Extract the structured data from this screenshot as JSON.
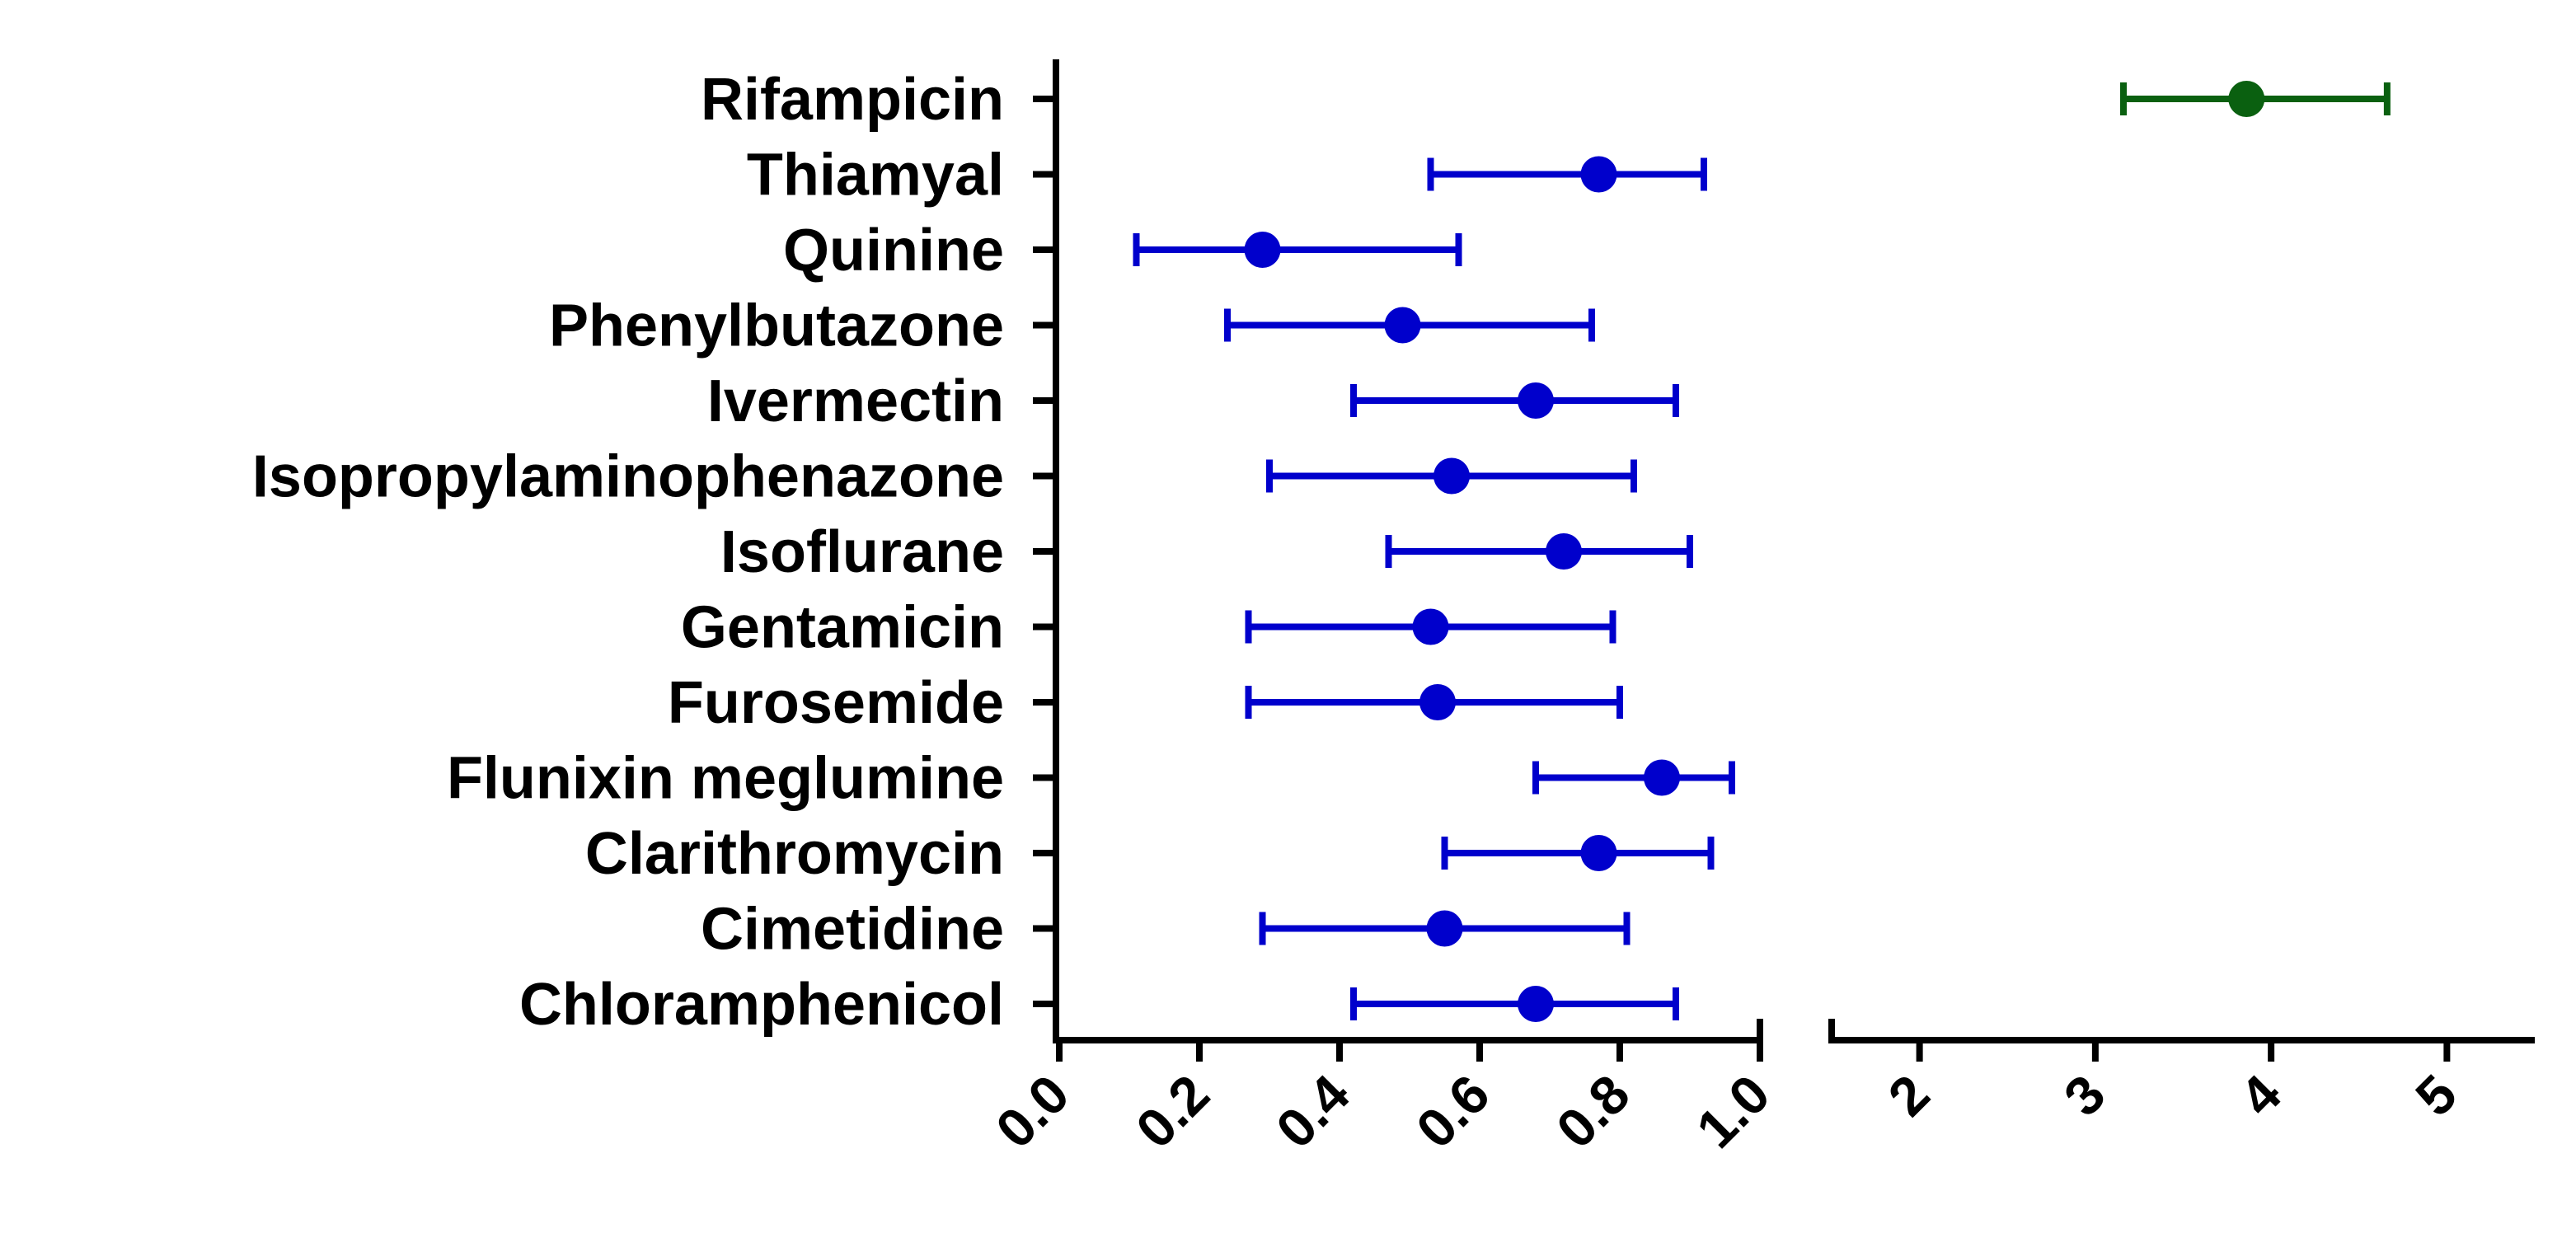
{
  "chart_data": {
    "type": "scatter",
    "title": "",
    "xlabel": "",
    "ylabel": "",
    "x_axis_segments": [
      {
        "range": [
          0.0,
          1.0
        ],
        "ticks": [
          0.0,
          0.2,
          0.4,
          0.6,
          0.8,
          1.0
        ],
        "tick_labels": [
          "0.0",
          "0.2",
          "0.4",
          "0.6",
          "0.8",
          "1.0"
        ]
      },
      {
        "range": [
          1.5,
          5.5
        ],
        "ticks": [
          2,
          3,
          4,
          5
        ],
        "tick_labels": [
          "2",
          "3",
          "4",
          "5"
        ]
      }
    ],
    "tick_label_rotation": "-45 degrees",
    "grid": false,
    "legend": "none",
    "colors": {
      "default": "#0000cc",
      "highlight": "#0a6010",
      "axis": "#000000"
    },
    "categories": [
      "Rifampicin",
      "Thiamyal",
      "Quinine",
      "Phenylbutazone",
      "Ivermectin",
      "Isopropylaminophenazone",
      "Isoflurane",
      "Gentamicin",
      "Furosemide",
      "Flunixin meglumine",
      "Clarithromycin",
      "Cimetidine",
      "Chloramphenicol"
    ],
    "points": [
      {
        "name": "Rifampicin",
        "value": 3.86,
        "low": 3.16,
        "high": 4.66,
        "color": "#0a6010"
      },
      {
        "name": "Thiamyal",
        "value": 0.77,
        "low": 0.53,
        "high": 0.92,
        "color": "#0000cc"
      },
      {
        "name": "Quinine",
        "value": 0.29,
        "low": 0.11,
        "high": 0.57,
        "color": "#0000cc"
      },
      {
        "name": "Phenylbutazone",
        "value": 0.49,
        "low": 0.24,
        "high": 0.76,
        "color": "#0000cc"
      },
      {
        "name": "Ivermectin",
        "value": 0.68,
        "low": 0.42,
        "high": 0.88,
        "color": "#0000cc"
      },
      {
        "name": "Isopropylaminophenazone",
        "value": 0.56,
        "low": 0.3,
        "high": 0.82,
        "color": "#0000cc"
      },
      {
        "name": "Isoflurane",
        "value": 0.72,
        "low": 0.47,
        "high": 0.9,
        "color": "#0000cc"
      },
      {
        "name": "Gentamicin",
        "value": 0.53,
        "low": 0.27,
        "high": 0.79,
        "color": "#0000cc"
      },
      {
        "name": "Furosemide",
        "value": 0.54,
        "low": 0.27,
        "high": 0.8,
        "color": "#0000cc"
      },
      {
        "name": "Flunixin meglumine",
        "value": 0.86,
        "low": 0.68,
        "high": 0.96,
        "color": "#0000cc"
      },
      {
        "name": "Clarithromycin",
        "value": 0.77,
        "low": 0.55,
        "high": 0.93,
        "color": "#0000cc"
      },
      {
        "name": "Cimetidine",
        "value": 0.55,
        "low": 0.29,
        "high": 0.81,
        "color": "#0000cc"
      },
      {
        "name": "Chloramphenicol",
        "value": 0.68,
        "low": 0.42,
        "high": 0.88,
        "color": "#0000cc"
      }
    ]
  }
}
